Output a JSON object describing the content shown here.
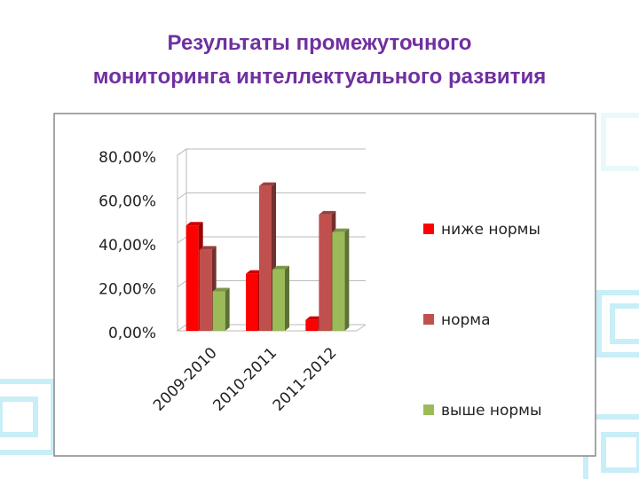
{
  "chart_data": {
    "type": "bar",
    "title": "Результаты промежуточного мониторинга интеллектуального развития",
    "categories": [
      "2009-2010",
      "2010-2011",
      "2011-2012"
    ],
    "series": [
      {
        "name": "ниже нормы",
        "color": "#ff0000",
        "values": [
          48,
          26,
          5
        ]
      },
      {
        "name": "норма",
        "color": "#c0504d",
        "values": [
          37,
          66,
          53
        ]
      },
      {
        "name": "выше нормы",
        "color": "#9bbb59",
        "values": [
          18,
          28,
          45
        ]
      }
    ],
    "ylim": [
      0,
      80
    ],
    "yticks": [
      {
        "value": 0,
        "label": "0,00%"
      },
      {
        "value": 20,
        "label": "20,00%"
      },
      {
        "value": 40,
        "label": "40,00%"
      },
      {
        "value": 60,
        "label": "60,00%"
      },
      {
        "value": 80,
        "label": "80,00%"
      }
    ],
    "grid": true,
    "legend": "right"
  }
}
